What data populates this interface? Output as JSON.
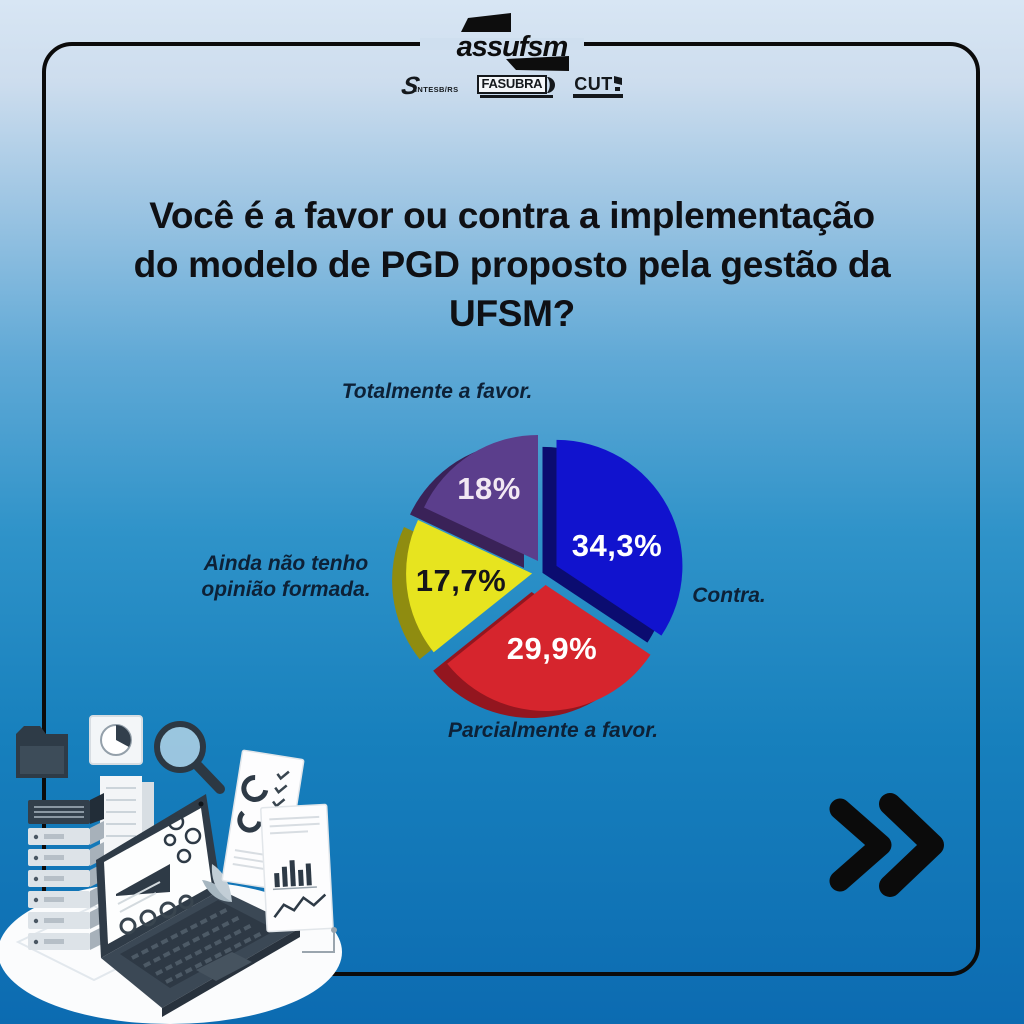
{
  "brand": {
    "logo_text": "assufsm",
    "partners": [
      {
        "name": "SINTESB/RS",
        "initial": "S",
        "text": "INTESB/RS"
      },
      {
        "name": "FASUBRA",
        "text": "FASUBRA"
      },
      {
        "name": "CUT",
        "text": "CUT"
      }
    ]
  },
  "question": {
    "lines": [
      "Você é a favor ou contra a implementação",
      "do modelo de PGD proposto pela gestão da",
      "UFSM?"
    ]
  },
  "chart_data": {
    "type": "pie",
    "style": "3d-exploded",
    "start_angle_deg": 0,
    "direction": "clockwise",
    "label_color": "#0d2137",
    "slices": [
      {
        "label": "Contra.",
        "value": 34.3,
        "display": "34,3%",
        "color": "#1113ce",
        "side_color": "#0b0c70",
        "value_color": "#ffffff"
      },
      {
        "label": "Parcialmente a favor.",
        "value": 29.9,
        "display": "29,9%",
        "color": "#d6252d",
        "side_color": "#93161f",
        "value_color": "#ffffff"
      },
      {
        "label": "Ainda não tenho opinião formada.",
        "value": 17.7,
        "display": "17,7%",
        "color": "#e7e41f",
        "side_color": "#8f8c10",
        "value_color": "#15151a"
      },
      {
        "label": "Totalmente a favor.",
        "value": 18.0,
        "display": "18%",
        "color": "#5b3e8c",
        "side_color": "#3a2258",
        "value_color": "#f2e8f3"
      }
    ]
  },
  "icons": {
    "next": "double-chevron-right"
  },
  "theme": {
    "frame_color": "#0b0b0b",
    "background_top": "#d8e6f4",
    "background_bottom": "#0c6bb1"
  }
}
